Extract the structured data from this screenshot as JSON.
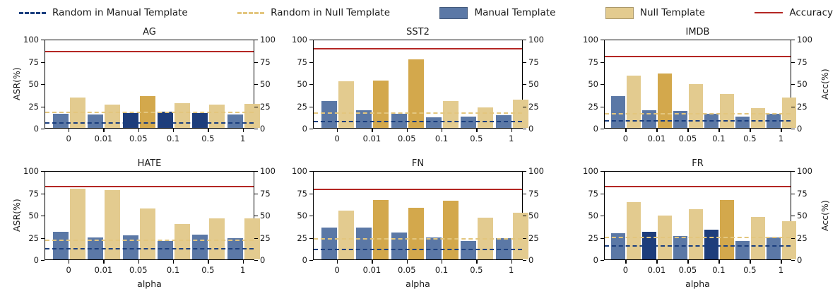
{
  "palette": {
    "manual": "#5b78a6",
    "manual_dark": "#1e3d7b",
    "null": "#e3cb8f",
    "null_dark": "#d3a84c",
    "accuracy": "#b42724",
    "random_manual": "#1a3e7e",
    "random_null": "#e3c67e",
    "spine": "#000000"
  },
  "legend": {
    "items": [
      {
        "label": "Random in Manual Template",
        "type": "dashed",
        "color": "random_manual"
      },
      {
        "label": "Random in Null Template",
        "type": "dashed",
        "color": "random_null"
      },
      {
        "label": "Manual Template",
        "type": "swatch",
        "color": "manual"
      },
      {
        "label": "Null Template",
        "type": "swatch",
        "color": "null"
      },
      {
        "label": "Accuracy",
        "type": "line",
        "color": "accuracy"
      }
    ]
  },
  "axes": {
    "ylabel_left": "ASR(%)",
    "ylabel_right": "Acc(%)",
    "xlabel": "alpha",
    "yticks": [
      0,
      25,
      50,
      75,
      100
    ],
    "ylim": [
      0,
      100
    ],
    "grid": false
  },
  "chart_data": [
    {
      "type": "bar",
      "title": "AG",
      "categories": [
        "0",
        "0.01",
        "0.05",
        "0.1",
        "0.5",
        "1"
      ],
      "series": [
        {
          "name": "Manual Template",
          "values": [
            16,
            15,
            17,
            18,
            17,
            15
          ],
          "emphasis": [
            false,
            false,
            true,
            true,
            true,
            false
          ]
        },
        {
          "name": "Null Template",
          "values": [
            34,
            26,
            36,
            28,
            26,
            27
          ],
          "emphasis": [
            false,
            false,
            true,
            false,
            false,
            false
          ]
        }
      ],
      "lines": {
        "accuracy": 87.5,
        "random_manual": 6.5,
        "random_null": 19
      },
      "ylim": [
        0,
        100
      ]
    },
    {
      "type": "bar",
      "title": "SST2",
      "categories": [
        "0",
        "0.01",
        "0.05",
        "0.1",
        "0.5",
        "1"
      ],
      "series": [
        {
          "name": "Manual Template",
          "values": [
            30,
            20,
            16,
            12,
            13,
            14
          ],
          "emphasis": [
            false,
            false,
            false,
            false,
            false,
            false
          ]
        },
        {
          "name": "Null Template",
          "values": [
            52,
            53,
            77,
            30,
            23,
            32
          ],
          "emphasis": [
            false,
            true,
            true,
            false,
            false,
            false
          ]
        }
      ],
      "lines": {
        "accuracy": 90.5,
        "random_manual": 8,
        "random_null": 18
      },
      "ylim": [
        0,
        100
      ]
    },
    {
      "type": "bar",
      "title": "IMDB",
      "categories": [
        "0",
        "0.01",
        "0.05",
        "0.1",
        "0.5",
        "1"
      ],
      "series": [
        {
          "name": "Manual Template",
          "values": [
            36,
            20,
            19,
            16,
            13,
            16
          ],
          "emphasis": [
            false,
            false,
            false,
            false,
            false,
            false
          ]
        },
        {
          "name": "Null Template",
          "values": [
            59,
            61,
            49,
            38,
            22,
            34
          ],
          "emphasis": [
            false,
            true,
            false,
            false,
            false,
            false
          ]
        }
      ],
      "lines": {
        "accuracy": 82,
        "random_manual": 9,
        "random_null": 17
      },
      "ylim": [
        0,
        100
      ]
    },
    {
      "type": "bar",
      "title": "HATE",
      "categories": [
        "0",
        "0.01",
        "0.05",
        "0.1",
        "0.5",
        "1"
      ],
      "series": [
        {
          "name": "Manual Template",
          "values": [
            31,
            25,
            27,
            21,
            28,
            24
          ],
          "emphasis": [
            false,
            false,
            false,
            false,
            false,
            false
          ]
        },
        {
          "name": "Null Template",
          "values": [
            79,
            78,
            57,
            40,
            46,
            46
          ],
          "emphasis": [
            false,
            false,
            false,
            false,
            false,
            false
          ]
        }
      ],
      "lines": {
        "accuracy": 83,
        "random_manual": 13,
        "random_null": 23
      },
      "ylim": [
        0,
        100
      ]
    },
    {
      "type": "bar",
      "title": "FN",
      "categories": [
        "0",
        "0.01",
        "0.05",
        "0.1",
        "0.5",
        "1"
      ],
      "series": [
        {
          "name": "Manual Template",
          "values": [
            36,
            36,
            30,
            25,
            21,
            24
          ],
          "emphasis": [
            false,
            false,
            false,
            false,
            false,
            false
          ]
        },
        {
          "name": "Null Template",
          "values": [
            55,
            67,
            58,
            66,
            47,
            52
          ],
          "emphasis": [
            false,
            true,
            true,
            true,
            false,
            false
          ]
        }
      ],
      "lines": {
        "accuracy": 80,
        "random_manual": 12,
        "random_null": 24
      },
      "ylim": [
        0,
        100
      ]
    },
    {
      "type": "bar",
      "title": "FR",
      "categories": [
        "0",
        "0.01",
        "0.05",
        "0.1",
        "0.5",
        "1"
      ],
      "series": [
        {
          "name": "Manual Template",
          "values": [
            29,
            31,
            26,
            33,
            21,
            25
          ],
          "emphasis": [
            false,
            true,
            false,
            true,
            false,
            false
          ]
        },
        {
          "name": "Null Template",
          "values": [
            64,
            49,
            56,
            67,
            48,
            43
          ],
          "emphasis": [
            false,
            false,
            false,
            true,
            false,
            false
          ]
        }
      ],
      "lines": {
        "accuracy": 83.5,
        "random_manual": 16,
        "random_null": 25.5
      },
      "ylim": [
        0,
        100
      ]
    }
  ]
}
